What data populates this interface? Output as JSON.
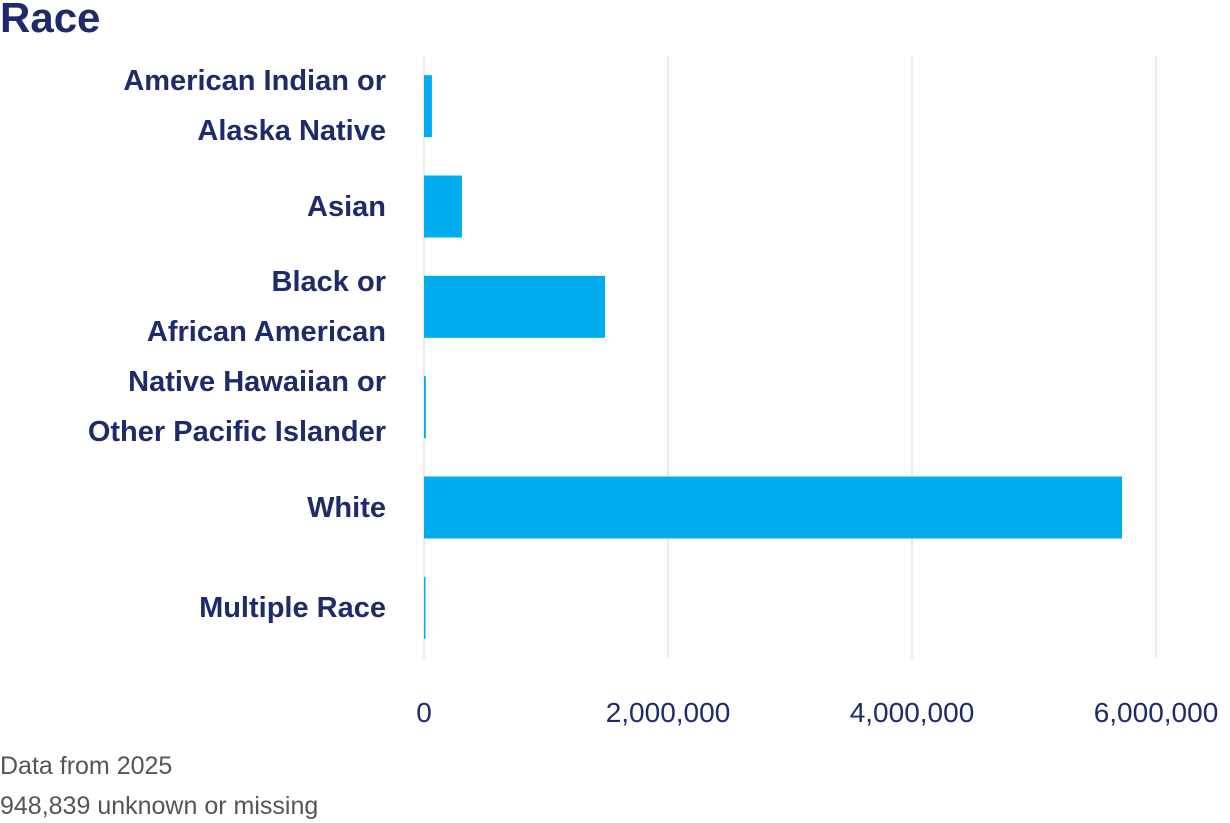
{
  "chart_data": {
    "type": "bar",
    "orientation": "horizontal",
    "title": "Race",
    "categories": [
      "American Indian or\nAlaska Native",
      "Asian",
      "Black or\nAfrican American",
      "Native Hawaiian or\nOther Pacific Islander",
      "White",
      "Multiple Race"
    ],
    "values": [
      65000,
      311000,
      1484000,
      15000,
      5721000,
      8000
    ],
    "color": "#00aeef",
    "xlim": [
      0,
      6000000
    ],
    "xticks": [
      0,
      {
        "value": 2000000,
        "label": "2,000,000"
      },
      {
        "value": 4000000,
        "label": "4,000,000"
      },
      {
        "value": 6000000,
        "label": "6,000,000"
      }
    ],
    "grid": true,
    "notes": [
      "Data from 2025",
      "948,839 unknown or missing"
    ]
  }
}
